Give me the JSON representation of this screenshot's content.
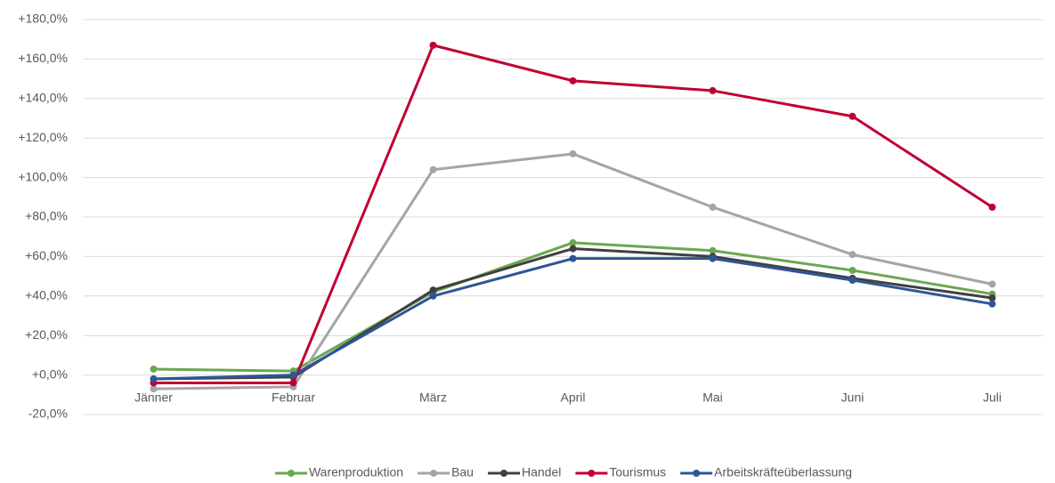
{
  "chart_data": {
    "type": "line",
    "categories": [
      "Jänner",
      "Februar",
      "März",
      "April",
      "Mai",
      "Juni",
      "Juli"
    ],
    "series": [
      {
        "name": "Warenproduktion",
        "color": "#6aa84f",
        "values": [
          3,
          2,
          42,
          67,
          63,
          53,
          41
        ]
      },
      {
        "name": "Bau",
        "color": "#a5a5a5",
        "values": [
          -7,
          -6,
          104,
          112,
          85,
          61,
          46
        ]
      },
      {
        "name": "Handel",
        "color": "#404040",
        "values": [
          -2,
          -1,
          43,
          64,
          60,
          49,
          39
        ]
      },
      {
        "name": "Tourismus",
        "color": "#c00032",
        "values": [
          -4,
          -4,
          167,
          149,
          144,
          131,
          85
        ]
      },
      {
        "name": "Arbeitskräfteüberlassung",
        "color": "#2f5597",
        "values": [
          -2,
          0,
          40,
          59,
          59,
          48,
          36
        ]
      }
    ],
    "ylim": [
      -20,
      180
    ],
    "yticks": [
      {
        "value": -20,
        "label": "-20,0%"
      },
      {
        "value": 0,
        "label": "+0,0%"
      },
      {
        "value": 20,
        "label": "+20,0%"
      },
      {
        "value": 40,
        "label": "+40,0%"
      },
      {
        "value": 60,
        "label": "+60,0%"
      },
      {
        "value": 80,
        "label": "+80,0%"
      },
      {
        "value": 100,
        "label": "+100,0%"
      },
      {
        "value": 120,
        "label": "+120,0%"
      },
      {
        "value": 140,
        "label": "+140,0%"
      },
      {
        "value": 160,
        "label": "+160,0%"
      },
      {
        "value": 180,
        "label": "+180,0%"
      }
    ],
    "grid": true,
    "legend": "bottom"
  }
}
